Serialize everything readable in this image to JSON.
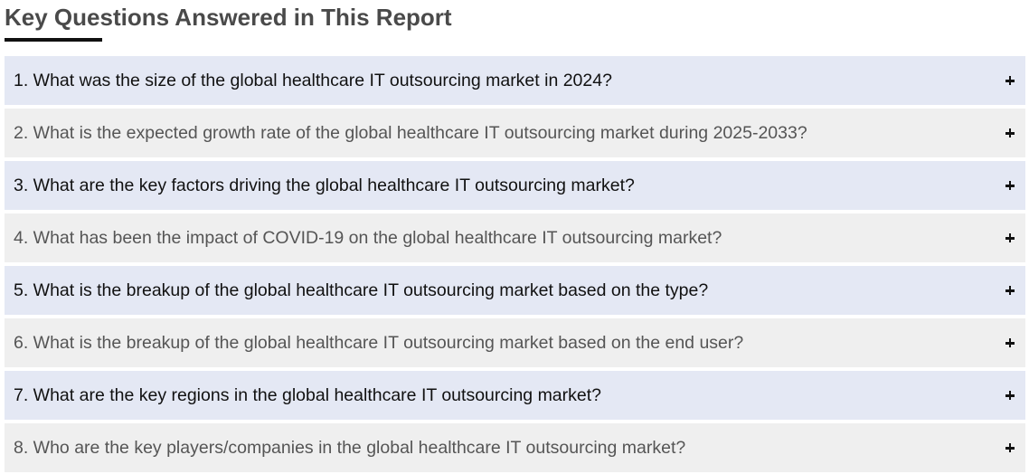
{
  "section": {
    "title": "Key Questions Answered in This Report"
  },
  "faq": {
    "items": [
      {
        "question": "1. What was the size of the global healthcare IT outsourcing market in 2024?",
        "toggle_icon": "plus-icon"
      },
      {
        "question": "2. What is the expected growth rate of the global healthcare IT outsourcing market during 2025-2033?",
        "toggle_icon": "plus-icon"
      },
      {
        "question": "3. What are the key factors driving the global healthcare IT outsourcing market?",
        "toggle_icon": "plus-icon"
      },
      {
        "question": "4. What has been the impact of COVID-19 on the global healthcare IT outsourcing market?",
        "toggle_icon": "plus-icon"
      },
      {
        "question": "5. What is the breakup of the global healthcare IT outsourcing market based on the type?",
        "toggle_icon": "plus-icon"
      },
      {
        "question": "6. What is the breakup of the global healthcare IT outsourcing market based on the end user?",
        "toggle_icon": "plus-icon"
      },
      {
        "question": "7. What are the key regions in the global healthcare IT outsourcing market?",
        "toggle_icon": "plus-icon"
      },
      {
        "question": "8. Who are the key players/companies in the global healthcare IT outsourcing market?",
        "toggle_icon": "plus-icon"
      }
    ]
  },
  "colors": {
    "title_text": "#4a4a4a",
    "underline": "#111111",
    "row_odd_bg": "#e4e8f4",
    "row_even_bg": "#efefef",
    "row_odd_text": "#111111",
    "row_even_text": "#555555"
  }
}
